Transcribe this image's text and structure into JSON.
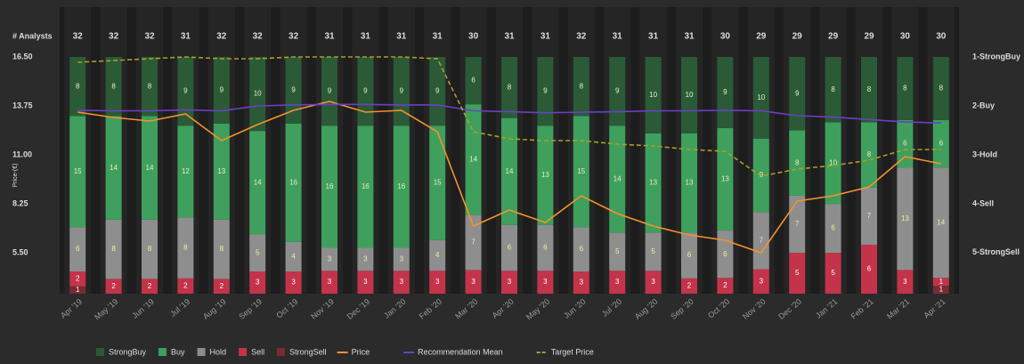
{
  "chart_data": {
    "type": "bar",
    "stacked": true,
    "analysts_label": "# Analysts",
    "ylabel": "Price-(€)",
    "categories": [
      "Apr '19",
      "May '19",
      "Jun '19",
      "Jul '19",
      "Aug '19",
      "Sep '19",
      "Oct '19",
      "Nov '19",
      "Dec '19",
      "Jan '20",
      "Feb '20",
      "Mar '20",
      "Apr '20",
      "May '20",
      "Jun '20",
      "Jul '20",
      "Aug '20",
      "Sep '20",
      "Oct '20",
      "Nov '20",
      "Dec '20",
      "Jan '21",
      "Feb '21",
      "Mar '21",
      "Apr '21"
    ],
    "analysts": [
      32,
      32,
      32,
      31,
      32,
      32,
      32,
      31,
      31,
      31,
      31,
      30,
      31,
      31,
      32,
      31,
      31,
      31,
      30,
      29,
      29,
      29,
      29,
      30,
      30
    ],
    "ylim": [
      3.2,
      16.5
    ],
    "yticks": [
      {
        "value": 5.5,
        "label": "5.50"
      },
      {
        "value": 8.25,
        "label": "8.25"
      },
      {
        "value": 11,
        "label": "11.00"
      },
      {
        "value": 13.75,
        "label": "13.75"
      },
      {
        "value": 16.5,
        "label": "16.50"
      }
    ],
    "y2lim": [
      1,
      5.84
    ],
    "y2_inverted": true,
    "y2ticks": [
      {
        "value": 1,
        "label": "1-StrongBuy"
      },
      {
        "value": 2,
        "label": "2-Buy"
      },
      {
        "value": 3,
        "label": "3-Hold"
      },
      {
        "value": 4,
        "label": "4-Sell"
      },
      {
        "value": 5,
        "label": "5-StrongSell"
      }
    ],
    "series": [
      {
        "name": "StrongBuy",
        "type": "bar",
        "color": "#2b5a37",
        "values": [
          8,
          8,
          8,
          9,
          9,
          10,
          9,
          9,
          9,
          9,
          9,
          6,
          8,
          9,
          8,
          9,
          10,
          10,
          9,
          10,
          9,
          8,
          8,
          8,
          8
        ]
      },
      {
        "name": "Buy",
        "type": "bar",
        "color": "#3f9f5d",
        "values": [
          15,
          14,
          14,
          12,
          13,
          14,
          16,
          16,
          16,
          16,
          15,
          14,
          14,
          13,
          15,
          14,
          13,
          13,
          13,
          9,
          8,
          10,
          8,
          6,
          6
        ]
      },
      {
        "name": "Hold",
        "type": "bar",
        "color": "#8e8e8e",
        "values": [
          6,
          8,
          8,
          8,
          8,
          5,
          4,
          3,
          3,
          3,
          4,
          7,
          6,
          6,
          6,
          5,
          5,
          6,
          6,
          7,
          7,
          6,
          7,
          13,
          14
        ]
      },
      {
        "name": "Sell",
        "type": "bar",
        "color": "#c3344b",
        "values": [
          2,
          2,
          2,
          2,
          2,
          3,
          3,
          3,
          3,
          3,
          3,
          3,
          3,
          3,
          3,
          3,
          3,
          2,
          2,
          3,
          5,
          5,
          6,
          3,
          1
        ]
      },
      {
        "name": "StrongSell",
        "type": "bar",
        "color": "#7a2a34",
        "values": [
          1,
          0,
          0,
          0,
          0,
          0,
          0,
          0,
          0,
          0,
          0,
          0,
          0,
          0,
          0,
          0,
          0,
          0,
          0,
          0,
          0,
          0,
          0,
          0,
          1
        ]
      },
      {
        "name": "Price",
        "type": "line",
        "color": "#f5922f",
        "values": [
          13.4,
          13.1,
          12.9,
          13.3,
          11.8,
          12.7,
          13.5,
          14.0,
          13.4,
          13.5,
          12.3,
          7.0,
          7.9,
          7.2,
          8.7,
          7.7,
          7.0,
          6.5,
          6.2,
          5.5,
          8.4,
          8.7,
          9.2,
          10.9,
          10.5
        ]
      },
      {
        "name": "Recommendation Mean",
        "type": "line",
        "axis": "y2",
        "color": "#6b3fc8",
        "values": [
          2.09,
          2.1,
          2.1,
          2.08,
          2.1,
          2.0,
          1.98,
          1.97,
          1.97,
          1.98,
          1.98,
          2.1,
          2.12,
          2.14,
          2.13,
          2.12,
          2.1,
          2.1,
          2.09,
          2.1,
          2.2,
          2.23,
          2.28,
          2.33,
          2.35
        ]
      },
      {
        "name": "Target Price",
        "type": "line",
        "dashed": true,
        "color": "#a89f2a",
        "values": [
          16.2,
          16.3,
          16.4,
          16.5,
          16.4,
          16.4,
          16.5,
          16.5,
          16.5,
          16.5,
          16.4,
          12.3,
          11.9,
          11.8,
          11.8,
          11.6,
          11.5,
          11.3,
          11.2,
          9.8,
          10.2,
          10.4,
          10.7,
          11.3,
          11.3
        ]
      }
    ]
  }
}
